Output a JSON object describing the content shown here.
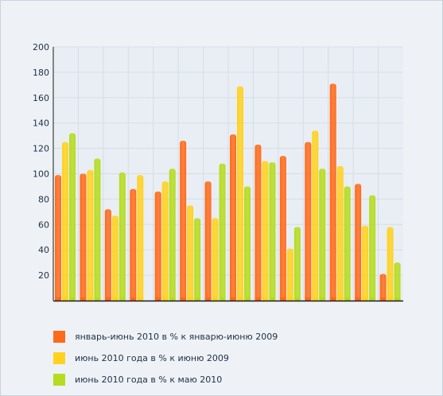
{
  "chart_data": {
    "type": "bar",
    "title": "",
    "xlabel": "",
    "ylabel": "",
    "ylim": [
      0,
      200
    ],
    "yticks": [
      20,
      40,
      60,
      80,
      100,
      120,
      140,
      160,
      180,
      200
    ],
    "grid": true,
    "legend_position": "bottom-left",
    "groups": 14,
    "series": [
      {
        "name": "январь-июнь 2010 в % к январю-июню 2009",
        "color": "#ff6a1a",
        "values": [
          99,
          100,
          72,
          88,
          86,
          126,
          94,
          131,
          123,
          114,
          125,
          171,
          92,
          21
        ]
      },
      {
        "name": "июнь 2010 года в % к июню 2009",
        "color": "#ffd21f",
        "values": [
          125,
          103,
          67,
          99,
          94,
          75,
          65,
          169,
          110,
          41,
          134,
          106,
          59,
          58
        ]
      },
      {
        "name": "июнь 2010 года в % к  маю 2010",
        "color": "#b5dc1e",
        "values": [
          132,
          112,
          101,
          0,
          104,
          65,
          108,
          90,
          109,
          58,
          104,
          90,
          83,
          30
        ]
      }
    ]
  }
}
